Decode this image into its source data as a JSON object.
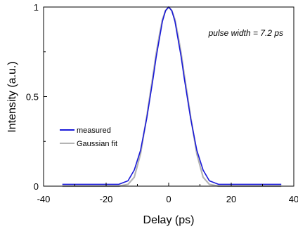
{
  "chart_data": {
    "type": "line",
    "xlabel": "Delay (ps)",
    "ylabel": "Intensity (a.u.)",
    "xlim": [
      -40,
      40
    ],
    "ylim": [
      0,
      1
    ],
    "xticks": [
      -40,
      -20,
      0,
      20,
      40
    ],
    "yticks": [
      0,
      0.5,
      1
    ],
    "xtick_labels": [
      "-40",
      "-20",
      "0",
      "20",
      "40"
    ],
    "ytick_labels": [
      "0",
      "0.5",
      "1"
    ],
    "grid": false,
    "legend_position": "left",
    "annotation": "pulse width = 7.2 ps",
    "series": [
      {
        "name": "measured",
        "color": "#1a1ad9",
        "x": [
          -34,
          -30,
          -25,
          -20,
          -16,
          -13,
          -11,
          -9,
          -7,
          -5,
          -4,
          -3,
          -2,
          -1,
          0,
          1,
          2,
          3,
          4,
          5,
          7,
          9,
          11,
          13,
          16,
          20,
          25,
          30,
          36
        ],
        "y": [
          0.01,
          0.01,
          0.01,
          0.01,
          0.01,
          0.03,
          0.09,
          0.2,
          0.38,
          0.6,
          0.72,
          0.82,
          0.92,
          0.98,
          1.0,
          0.98,
          0.92,
          0.82,
          0.72,
          0.6,
          0.38,
          0.2,
          0.09,
          0.03,
          0.01,
          0.01,
          0.01,
          0.01,
          0.01
        ]
      },
      {
        "name": "Gaussian fit",
        "color": "#b4b4b4",
        "x": [
          -34,
          -30,
          -25,
          -20,
          -16,
          -13,
          -11,
          -9,
          -7,
          -5,
          -4,
          -3,
          -2,
          -1,
          0,
          1,
          2,
          3,
          4,
          5,
          7,
          9,
          11,
          13,
          16,
          20,
          25,
          30,
          36
        ],
        "y": [
          0.0,
          0.0,
          0.0,
          0.0,
          0.0,
          0.01,
          0.05,
          0.18,
          0.39,
          0.62,
          0.74,
          0.84,
          0.93,
          0.98,
          1.0,
          0.98,
          0.93,
          0.84,
          0.74,
          0.62,
          0.39,
          0.18,
          0.05,
          0.01,
          0.0,
          0.0,
          0.0,
          0.0,
          0.0
        ]
      }
    ]
  }
}
